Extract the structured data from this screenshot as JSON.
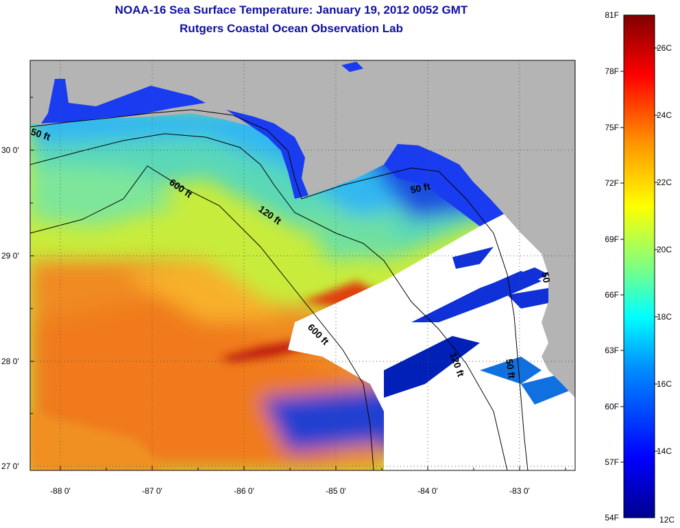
{
  "title": {
    "line1": "NOAA-16 Sea Surface Temperature:  January 19, 2012 0052 GMT",
    "line2": "Rutgers Coastal Ocean Observation Lab"
  },
  "axes": {
    "x_ticks": [
      "-88 0'",
      "-87 0'",
      "-86 0'",
      "-85 0'",
      "-84 0'",
      "-83 0'"
    ],
    "y_ticks": [
      "30 0'",
      "29 0'",
      "28 0'",
      "27 0'"
    ]
  },
  "contours": {
    "c50_west": "50 ft",
    "c600_north": "600 ft",
    "c120_north": "120 ft",
    "c50_east": "50 ft",
    "c600_south": "600 ft",
    "c120_south": "120 ft",
    "c50_south": "50 ft",
    "c50_coast": "50"
  },
  "colorbar": {
    "fahrenheit": [
      "81F",
      "78F",
      "75F",
      "72F",
      "69F",
      "66F",
      "63F",
      "60F",
      "57F",
      "54F"
    ],
    "celsius": [
      "26C",
      "24C",
      "22C",
      "20C",
      "18C",
      "16C",
      "14C",
      "12C"
    ]
  },
  "colors": {
    "land": "#b4b4b4",
    "cloud": "#ffffff",
    "title": "#1010a0"
  }
}
